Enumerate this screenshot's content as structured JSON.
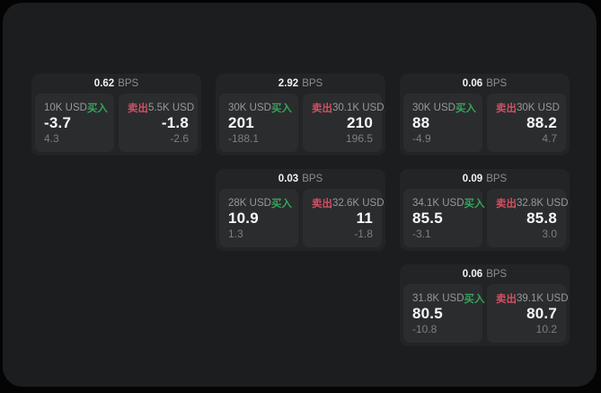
{
  "labels": {
    "bps": "BPS",
    "buy": "买入",
    "sell": "卖出"
  },
  "colors": {
    "page_bg": "#040404",
    "panel_bg": "#1c1d1e",
    "card_bg": "#232426",
    "subcard_bg": "#2b2c2e",
    "text_primary": "#f7f8f8",
    "text_secondary": "#97989a",
    "buy_green": "#34a45c",
    "sell_red": "#d04f63"
  },
  "cards": [
    {
      "col": 1,
      "row": 1,
      "bps": "0.62",
      "buy": {
        "size": "10K USD",
        "price": "-3.7",
        "delta": "4.3"
      },
      "sell": {
        "size": "5.5K USD",
        "price": "-1.8",
        "delta": "-2.6"
      }
    },
    {
      "col": 2,
      "row": 1,
      "bps": "2.92",
      "buy": {
        "size": "30K USD",
        "price": "201",
        "delta": "-188.1"
      },
      "sell": {
        "size": "30.1K USD",
        "price": "210",
        "delta": "196.5"
      }
    },
    {
      "col": 3,
      "row": 1,
      "bps": "0.06",
      "buy": {
        "size": "30K USD",
        "price": "88",
        "delta": "-4.9"
      },
      "sell": {
        "size": "30K USD",
        "price": "88.2",
        "delta": "4.7"
      }
    },
    {
      "col": 2,
      "row": 2,
      "bps": "0.03",
      "buy": {
        "size": "28K USD",
        "price": "10.9",
        "delta": "1.3"
      },
      "sell": {
        "size": "32.6K USD",
        "price": "11",
        "delta": "-1.8"
      }
    },
    {
      "col": 3,
      "row": 2,
      "bps": "0.09",
      "buy": {
        "size": "34.1K USD",
        "price": "85.5",
        "delta": "-3.1"
      },
      "sell": {
        "size": "32.8K USD",
        "price": "85.8",
        "delta": "3.0"
      }
    },
    {
      "col": 3,
      "row": 3,
      "bps": "0.06",
      "buy": {
        "size": "31.8K USD",
        "price": "80.5",
        "delta": "-10.8"
      },
      "sell": {
        "size": "39.1K USD",
        "price": "80.7",
        "delta": "10.2"
      }
    }
  ]
}
